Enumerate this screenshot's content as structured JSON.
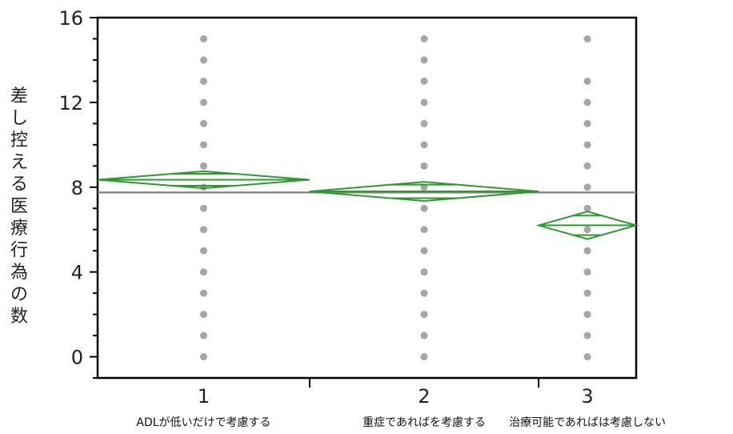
{
  "chart_data": {
    "type": "scatter",
    "ylabel": "差し控える医療行為の数",
    "ylim": [
      -1,
      16
    ],
    "yticks": [
      0,
      4,
      8,
      12,
      16
    ],
    "y_minor_step": 1,
    "grand_mean": 7.75,
    "groups": [
      {
        "tick": "1",
        "label": "ADLが低いだけで考慮する",
        "weight": 50,
        "mean": 8.35,
        "ci": [
          7.95,
          8.75
        ],
        "values": [
          0,
          1,
          2,
          3,
          4,
          5,
          6,
          7,
          8,
          9,
          10,
          11,
          12,
          13,
          14,
          15
        ]
      },
      {
        "tick": "2",
        "label": "重症であればを考慮する",
        "weight": 54,
        "mean": 7.8,
        "ci": [
          7.35,
          8.25
        ],
        "values": [
          0,
          1,
          2,
          3,
          4,
          5,
          6,
          7,
          8,
          9,
          10,
          11,
          12,
          13,
          14,
          15
        ]
      },
      {
        "tick": "3",
        "label": "治療可能であればは考慮しない",
        "weight": 23,
        "mean": 6.2,
        "ci": [
          5.55,
          6.85
        ],
        "values": [
          0,
          1,
          2,
          3,
          4,
          5,
          6,
          7,
          8,
          9,
          10,
          11,
          12,
          13,
          15
        ]
      }
    ],
    "colors": {
      "points": "#a6a6a6",
      "diamond": "#2e9a2e",
      "grand_mean_line": "#7f7f7f",
      "axis": "#000000"
    }
  }
}
